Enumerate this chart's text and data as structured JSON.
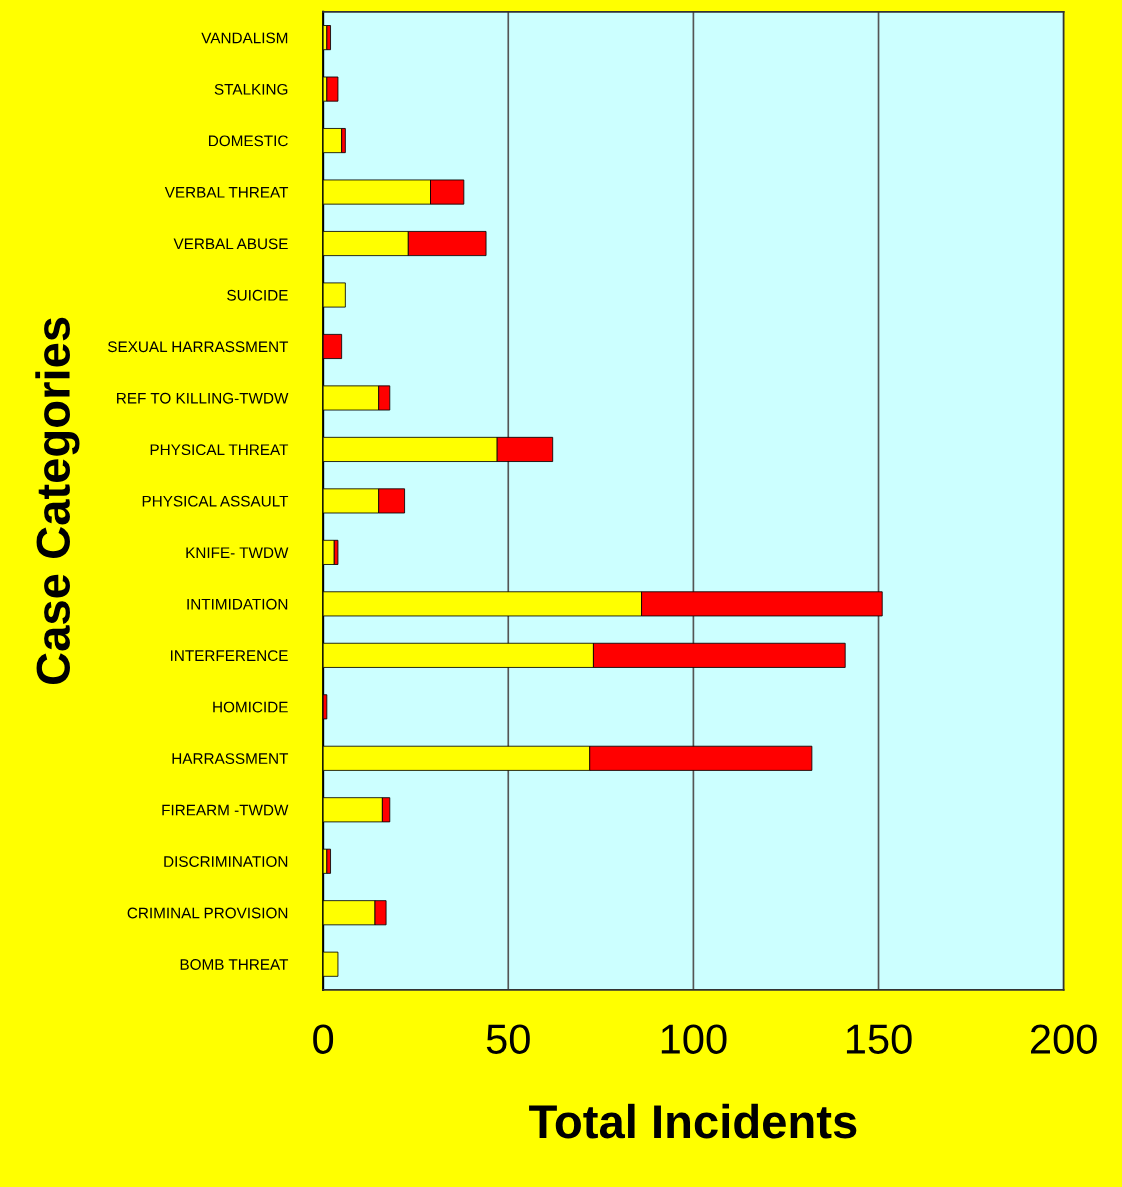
{
  "chart_data": {
    "type": "bar",
    "orientation": "horizontal",
    "stacked": true,
    "xlabel": "Total Incidents",
    "ylabel": "Case Categories",
    "categories": [
      "VANDALISM",
      "STALKING",
      "DOMESTIC",
      "VERBAL THREAT",
      "VERBAL ABUSE",
      "SUICIDE",
      "SEXUAL HARRASSMENT",
      "REF TO KILLING-TWDW",
      "PHYSICAL THREAT",
      "PHYSICAL ASSAULT",
      "KNIFE- TWDW",
      "INTIMIDATION",
      "INTERFERENCE",
      "HOMICIDE",
      "HARRASSMENT",
      "FIREARM -TWDW",
      "DISCRIMINATION",
      "CRIMINAL PROVISION",
      "BOMB THREAT"
    ],
    "series": [
      {
        "color": "#ffff00",
        "values": [
          1,
          1,
          5,
          29,
          23,
          6,
          0,
          15,
          47,
          15,
          3,
          86,
          73,
          0,
          72,
          16,
          1,
          14,
          4
        ]
      },
      {
        "color": "#ff0000",
        "values": [
          1,
          3,
          1,
          9,
          21,
          0,
          5,
          3,
          15,
          7,
          1,
          65,
          68,
          1,
          60,
          2,
          1,
          3,
          0
        ]
      }
    ],
    "xlim": [
      0,
      200
    ],
    "xticks": [
      0,
      50,
      100,
      150,
      200
    ],
    "grid": "x",
    "legend": false
  }
}
